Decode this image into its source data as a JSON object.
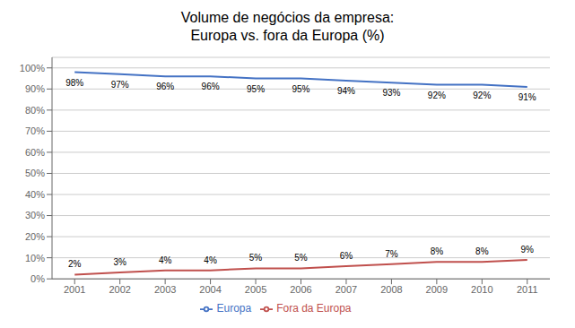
{
  "chart_data": {
    "type": "line",
    "title": "Volume de negócios da empresa:\nEuropa vs. fora da Europa (%)",
    "x": [
      2001,
      2002,
      2003,
      2004,
      2005,
      2006,
      2007,
      2008,
      2009,
      2010,
      2011
    ],
    "series": [
      {
        "name": "Europa",
        "color": "#4472C4",
        "values": [
          0.98,
          0.97,
          0.96,
          0.96,
          0.95,
          0.95,
          0.94,
          0.93,
          0.92,
          0.92,
          0.91
        ],
        "value_labels": [
          "98%",
          "97%",
          "96%",
          "96%",
          "95%",
          "95%",
          "94%",
          "93%",
          "92%",
          "92%",
          "91%"
        ]
      },
      {
        "name": "Fora da Europa",
        "color": "#C0504D",
        "values": [
          0.02,
          0.03,
          0.04,
          0.04,
          0.05,
          0.05,
          0.06,
          0.07,
          0.08,
          0.08,
          0.09
        ],
        "value_labels": [
          "2%",
          "3%",
          "4%",
          "4%",
          "5%",
          "5%",
          "6%",
          "7%",
          "8%",
          "8%",
          "9%"
        ]
      }
    ],
    "xlim": [
      2000.5,
      2011.5
    ],
    "xticks": [
      2001,
      2002,
      2003,
      2004,
      2005,
      2006,
      2007,
      2008,
      2009,
      2010,
      2011
    ],
    "ylim": [
      0,
      1.05
    ],
    "yticks": [
      {
        "value": 0,
        "label": "0%"
      },
      {
        "value": 0.1,
        "label": "10%"
      },
      {
        "value": 0.2,
        "label": "20%"
      },
      {
        "value": 0.3,
        "label": "30%"
      },
      {
        "value": 0.4,
        "label": "40%"
      },
      {
        "value": 0.5,
        "label": "50%"
      },
      {
        "value": 0.6,
        "label": "60%"
      },
      {
        "value": 0.7,
        "label": "70%"
      },
      {
        "value": 0.8,
        "label": "80%"
      },
      {
        "value": 0.9,
        "label": "90%"
      },
      {
        "value": 1.0,
        "label": "100%"
      }
    ],
    "grid": "y",
    "legend": "bottom",
    "data_labels": true
  }
}
